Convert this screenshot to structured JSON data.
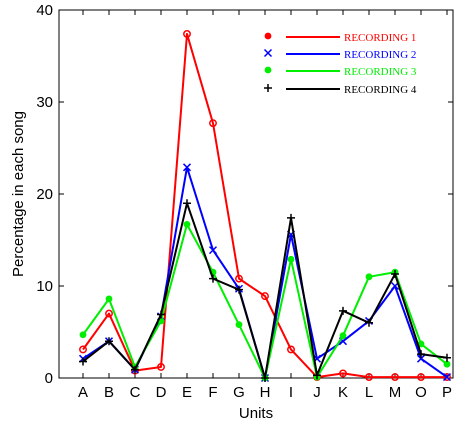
{
  "chart_data": {
    "type": "line",
    "xlabel": "Units",
    "ylabel": "Percentage in each song",
    "ylim": [
      0,
      40
    ],
    "yticks": [
      "0",
      "10",
      "20",
      "30",
      "40"
    ],
    "categories": [
      "A",
      "B",
      "C",
      "D",
      "E",
      "F",
      "G",
      "H",
      "I",
      "J",
      "K",
      "L",
      "M",
      "O",
      "P"
    ],
    "legend_position": "top-right",
    "grid": false,
    "series": [
      {
        "name": "RECORDING 1",
        "color": "#ff0000",
        "marker": "open-circle",
        "values": [
          3.1,
          7.0,
          0.8,
          1.2,
          37.4,
          27.7,
          10.8,
          8.9,
          3.1,
          0.1,
          0.5,
          0.1,
          0.1,
          0.1,
          0.1
        ]
      },
      {
        "name": "RECORDING 2",
        "color": "#0000ff",
        "marker": "x",
        "values": [
          2.1,
          4.0,
          0.9,
          6.7,
          22.9,
          13.9,
          9.7,
          0.0,
          15.6,
          2.1,
          4.0,
          6.2,
          10.0,
          2.1,
          0.1
        ]
      },
      {
        "name": "RECORDING 3",
        "color": "#00ee00",
        "marker": "filled-circle",
        "values": [
          4.7,
          8.6,
          1.2,
          6.2,
          16.7,
          11.5,
          5.8,
          0.0,
          12.9,
          0.1,
          4.6,
          11.0,
          11.5,
          3.7,
          1.5
        ]
      },
      {
        "name": "RECORDING 4",
        "color": "#000000",
        "marker": "plus",
        "values": [
          1.8,
          4.0,
          0.9,
          6.9,
          19.0,
          10.8,
          9.6,
          0.0,
          17.4,
          0.3,
          7.3,
          6.0,
          11.3,
          2.6,
          2.2
        ]
      }
    ]
  }
}
